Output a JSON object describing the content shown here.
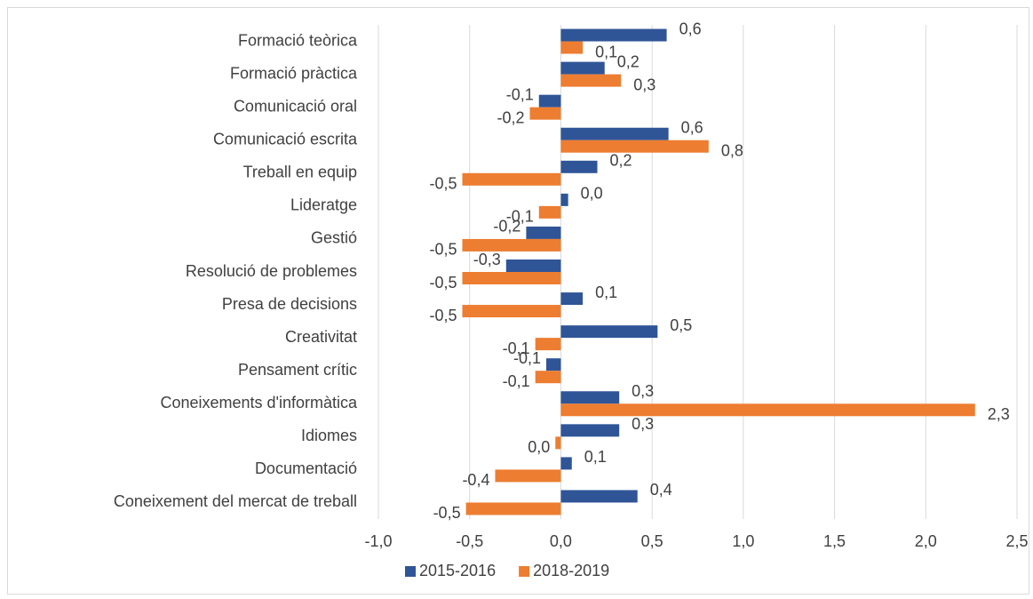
{
  "chart_data": {
    "type": "barh",
    "categories": [
      "Formació teòrica",
      "Formació pràctica",
      "Comunicació oral",
      "Comunicació escrita",
      "Treball en equip",
      "Lideratge",
      "Gestió",
      "Resolució de problemes",
      "Presa de decisions",
      "Creativitat",
      "Pensament crític",
      "Coneixements d'informàtica",
      "Idiomes",
      "Documentació",
      "Coneixement del mercat de treball"
    ],
    "series": [
      {
        "name": "2015-2016",
        "color": "#2f5597",
        "values": [
          0.58,
          0.24,
          -0.12,
          0.59,
          0.2,
          0.04,
          -0.19,
          -0.3,
          0.12,
          0.53,
          -0.08,
          0.32,
          0.32,
          0.06,
          0.42
        ],
        "value_labels": [
          "0,6",
          "0,2",
          "-0,1",
          "0,6",
          "0,2",
          "0,0",
          "-0,2",
          "-0,3",
          "0,1",
          "0,5",
          "-0,1",
          "0,3",
          "0,3",
          "0,1",
          "0,4"
        ]
      },
      {
        "name": "2018-2019",
        "color": "#ed7d31",
        "values": [
          0.12,
          0.33,
          -0.17,
          0.81,
          -0.54,
          -0.12,
          -0.54,
          -0.54,
          -0.54,
          -0.14,
          -0.14,
          2.27,
          -0.03,
          -0.36,
          -0.52
        ],
        "value_labels": [
          "0,1",
          "0,3",
          "-0,2",
          "0,8",
          "-0,5",
          "-0,1",
          "-0,5",
          "-0,5",
          "-0,5",
          "-0,1",
          "-0,1",
          "2,3",
          "0,0",
          "-0,4",
          "-0,5"
        ]
      }
    ],
    "xlim": [
      -1.0,
      2.5
    ],
    "xticks": [
      {
        "value": -1.0,
        "label": "-1,0"
      },
      {
        "value": -0.5,
        "label": "-0,5"
      },
      {
        "value": 0.0,
        "label": "0,0"
      },
      {
        "value": 0.5,
        "label": "0,5"
      },
      {
        "value": 1.0,
        "label": "1,0"
      },
      {
        "value": 1.5,
        "label": "1,5"
      },
      {
        "value": 2.0,
        "label": "2,0"
      },
      {
        "value": 2.5,
        "label": "2,5"
      }
    ],
    "grid": true,
    "legend": "bottom"
  }
}
